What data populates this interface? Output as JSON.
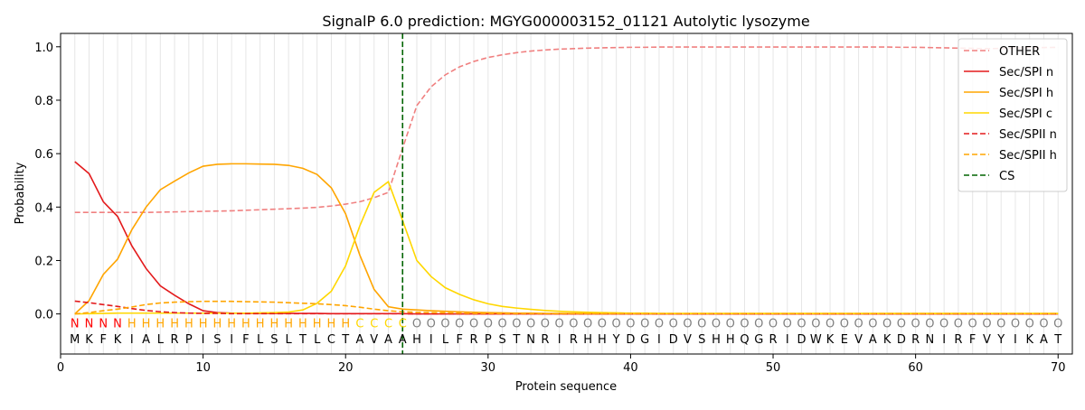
{
  "chart_data": {
    "type": "line",
    "title": "SignalP 6.0 prediction: MGYG000003152_01121 Autolytic lysozyme",
    "xlabel": "Protein sequence",
    "ylabel": "Probability",
    "xlim": [
      0,
      71
    ],
    "ylim": [
      -0.15,
      1.05
    ],
    "xticks": [
      0,
      10,
      20,
      30,
      40,
      50,
      60,
      70
    ],
    "yticks": [
      0.0,
      0.2,
      0.4,
      0.6,
      0.8,
      1.0
    ],
    "grid": "vertical lines at each residue",
    "legend_position": "top-right",
    "sequence": [
      "M",
      "K",
      "F",
      "K",
      "I",
      "A",
      "L",
      "R",
      "P",
      "I",
      "S",
      "I",
      "F",
      "L",
      "S",
      "L",
      "T",
      "L",
      "C",
      "T",
      "A",
      "V",
      "A",
      "A",
      "H",
      "I",
      "L",
      "F",
      "R",
      "P",
      "S",
      "T",
      "N",
      "R",
      "I",
      "R",
      "H",
      "H",
      "Y",
      "D",
      "G",
      "I",
      "D",
      "V",
      "S",
      "H",
      "H",
      "Q",
      "G",
      "R",
      "I",
      "D",
      "W",
      "K",
      "E",
      "V",
      "A",
      "K",
      "D",
      "R",
      "N",
      "I",
      "R",
      "F",
      "V",
      "Y",
      "I",
      "K",
      "A",
      "T"
    ],
    "region_labels": [
      "N",
      "N",
      "N",
      "N",
      "H",
      "H",
      "H",
      "H",
      "H",
      "H",
      "H",
      "H",
      "H",
      "H",
      "H",
      "H",
      "H",
      "H",
      "H",
      "H",
      "C",
      "C",
      "C",
      "C",
      "O",
      "O",
      "O",
      "O",
      "O",
      "O",
      "O",
      "O",
      "O",
      "O",
      "O",
      "O",
      "O",
      "O",
      "O",
      "O",
      "O",
      "O",
      "O",
      "O",
      "O",
      "O",
      "O",
      "O",
      "O",
      "O",
      "O",
      "O",
      "O",
      "O",
      "O",
      "O",
      "O",
      "O",
      "O",
      "O",
      "O",
      "O",
      "O",
      "O",
      "O",
      "O",
      "O",
      "O",
      "O",
      "O"
    ],
    "region_colors": {
      "N": "#ff0000",
      "H": "#ffa500",
      "C": "#ffd700",
      "O": "#808080"
    },
    "cleavage_site": 24,
    "series": [
      {
        "name": "OTHER",
        "color": "#f08080",
        "dash": "dashed",
        "values": [
          0.38,
          0.38,
          0.38,
          0.38,
          0.38,
          0.38,
          0.381,
          0.382,
          0.383,
          0.384,
          0.385,
          0.386,
          0.388,
          0.39,
          0.392,
          0.394,
          0.396,
          0.399,
          0.404,
          0.411,
          0.42,
          0.435,
          0.455,
          0.62,
          0.78,
          0.85,
          0.895,
          0.925,
          0.945,
          0.96,
          0.97,
          0.978,
          0.984,
          0.988,
          0.991,
          0.993,
          0.995,
          0.996,
          0.997,
          0.998,
          0.998,
          0.999,
          0.999,
          0.999,
          0.999,
          0.999,
          0.999,
          0.999,
          0.999,
          0.999,
          0.999,
          0.999,
          0.999,
          0.999,
          0.999,
          0.999,
          0.999,
          0.999,
          0.998,
          0.998,
          0.997,
          0.996,
          0.995,
          0.994,
          0.993,
          0.994,
          0.995,
          0.996,
          0.997,
          0.998
        ]
      },
      {
        "name": "Sec/SPI n",
        "color": "#e31a1c",
        "dash": "solid",
        "values": [
          0.57,
          0.525,
          0.42,
          0.365,
          0.255,
          0.17,
          0.105,
          0.07,
          0.038,
          0.012,
          0.005,
          0.003,
          0.002,
          0.002,
          0.002,
          0.002,
          0.002,
          0.002,
          0.001,
          0.001,
          0.001,
          0.001,
          0.001,
          0.001,
          0.0,
          0.0,
          0.0,
          0.0,
          0.0,
          0.0,
          0.0,
          0.0,
          0.0,
          0.0,
          0.0,
          0.0,
          0.0,
          0.0,
          0.0,
          0.0,
          0.0,
          0.0,
          0.0,
          0.0,
          0.0,
          0.0,
          0.0,
          0.0,
          0.0,
          0.0,
          0.0,
          0.0,
          0.0,
          0.0,
          0.0,
          0.0,
          0.0,
          0.0,
          0.0,
          0.0,
          0.0,
          0.0,
          0.0,
          0.0,
          0.0,
          0.0,
          0.0,
          0.0,
          0.0,
          0.0
        ]
      },
      {
        "name": "Sec/SPI h",
        "color": "#ffa500",
        "dash": "solid",
        "values": [
          0.0,
          0.05,
          0.148,
          0.205,
          0.315,
          0.4,
          0.465,
          0.497,
          0.528,
          0.553,
          0.56,
          0.562,
          0.562,
          0.561,
          0.56,
          0.556,
          0.545,
          0.522,
          0.472,
          0.375,
          0.22,
          0.092,
          0.027,
          0.018,
          0.015,
          0.012,
          0.01,
          0.008,
          0.006,
          0.005,
          0.004,
          0.003,
          0.003,
          0.002,
          0.002,
          0.002,
          0.001,
          0.001,
          0.001,
          0.001,
          0.001,
          0.001,
          0.001,
          0.001,
          0.001,
          0.001,
          0.001,
          0.001,
          0.001,
          0.001,
          0.001,
          0.001,
          0.001,
          0.001,
          0.001,
          0.001,
          0.001,
          0.001,
          0.001,
          0.001,
          0.001,
          0.001,
          0.001,
          0.001,
          0.001,
          0.001,
          0.001,
          0.001,
          0.001,
          0.001
        ]
      },
      {
        "name": "Sec/SPI c",
        "color": "#ffd700",
        "dash": "solid",
        "values": [
          0.0,
          0.001,
          0.002,
          0.003,
          0.003,
          0.003,
          0.003,
          0.003,
          0.003,
          0.003,
          0.003,
          0.003,
          0.003,
          0.004,
          0.005,
          0.007,
          0.015,
          0.04,
          0.085,
          0.18,
          0.33,
          0.455,
          0.495,
          0.35,
          0.2,
          0.14,
          0.098,
          0.073,
          0.053,
          0.038,
          0.028,
          0.022,
          0.017,
          0.013,
          0.01,
          0.008,
          0.006,
          0.005,
          0.004,
          0.003,
          0.003,
          0.002,
          0.002,
          0.002,
          0.002,
          0.002,
          0.002,
          0.002,
          0.002,
          0.002,
          0.002,
          0.002,
          0.002,
          0.002,
          0.002,
          0.002,
          0.002,
          0.002,
          0.002,
          0.002,
          0.002,
          0.002,
          0.002,
          0.002,
          0.002,
          0.002,
          0.002,
          0.002,
          0.002,
          0.002
        ]
      },
      {
        "name": "Sec/SPII n",
        "color": "#e31a1c",
        "dash": "dashed",
        "values": [
          0.048,
          0.042,
          0.035,
          0.028,
          0.02,
          0.013,
          0.008,
          0.005,
          0.003,
          0.002,
          0.002,
          0.001,
          0.001,
          0.001,
          0.001,
          0.001,
          0.001,
          0.001,
          0.001,
          0.001,
          0.001,
          0.001,
          0.001,
          0.001,
          0.0,
          0.0,
          0.0,
          0.0,
          0.0,
          0.0,
          0.0,
          0.0,
          0.0,
          0.0,
          0.0,
          0.0,
          0.0,
          0.0,
          0.0,
          0.0,
          0.0,
          0.0,
          0.0,
          0.0,
          0.0,
          0.0,
          0.0,
          0.0,
          0.0,
          0.0,
          0.0,
          0.0,
          0.0,
          0.0,
          0.0,
          0.0,
          0.0,
          0.0,
          0.0,
          0.0,
          0.0,
          0.0,
          0.0,
          0.0,
          0.0,
          0.0,
          0.0,
          0.0,
          0.0,
          0.0
        ]
      },
      {
        "name": "Sec/SPII h",
        "color": "#ffa500",
        "dash": "dashed",
        "values": [
          0.0,
          0.005,
          0.012,
          0.018,
          0.026,
          0.035,
          0.041,
          0.044,
          0.046,
          0.047,
          0.047,
          0.047,
          0.046,
          0.045,
          0.044,
          0.042,
          0.04,
          0.038,
          0.035,
          0.031,
          0.025,
          0.018,
          0.012,
          0.008,
          0.006,
          0.005,
          0.004,
          0.003,
          0.002,
          0.002,
          0.001,
          0.001,
          0.001,
          0.001,
          0.001,
          0.001,
          0.001,
          0.001,
          0.001,
          0.001,
          0.001,
          0.001,
          0.001,
          0.001,
          0.001,
          0.001,
          0.001,
          0.001,
          0.001,
          0.001,
          0.001,
          0.001,
          0.001,
          0.001,
          0.001,
          0.001,
          0.001,
          0.001,
          0.001,
          0.001,
          0.001,
          0.001,
          0.001,
          0.001,
          0.001,
          0.001,
          0.001,
          0.001,
          0.001,
          0.001
        ]
      }
    ],
    "cs_legend": {
      "name": "CS",
      "color": "#006400",
      "dash": "dashed"
    }
  }
}
